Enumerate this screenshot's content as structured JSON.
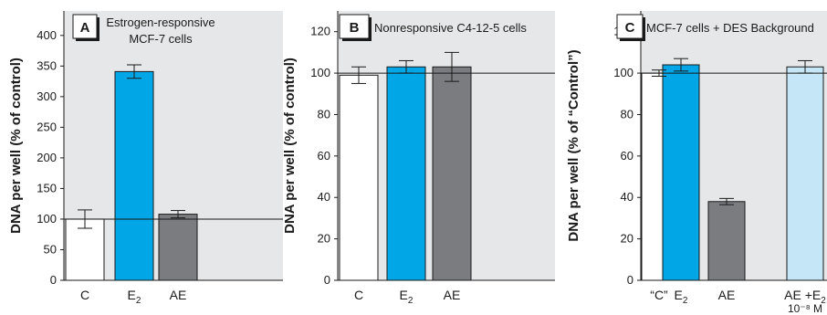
{
  "chart_data": [
    {
      "type": "bar",
      "panel_label": "A",
      "annotation": [
        "Estrogen-responsive",
        "MCF-7 cells"
      ],
      "ylabel": "DNA per well (% of control)",
      "categories": [
        {
          "main": "C",
          "sub": "",
          "extra": ""
        },
        {
          "main": "E",
          "sub": "2",
          "extra": ""
        },
        {
          "main": "AE",
          "sub": "",
          "extra": ""
        }
      ],
      "values": [
        100,
        341,
        108
      ],
      "errors": [
        15,
        11,
        6
      ],
      "ylim": [
        0,
        440
      ],
      "yticks": [
        0,
        50,
        100,
        150,
        200,
        250,
        300,
        350,
        400
      ],
      "reference_line": 100,
      "colors": [
        "#ffffff",
        "#00a6e6",
        "#7a7c80"
      ]
    },
    {
      "type": "bar",
      "panel_label": "B",
      "annotation": [
        "Nonresponsive C4-12-5 cells"
      ],
      "ylabel": "DNA per well (% of control)",
      "categories": [
        {
          "main": "C",
          "sub": "",
          "extra": ""
        },
        {
          "main": "E",
          "sub": "2",
          "extra": ""
        },
        {
          "main": "AE",
          "sub": "",
          "extra": ""
        }
      ],
      "values": [
        99,
        103,
        103
      ],
      "errors": [
        4,
        3,
        7
      ],
      "ylim": [
        0,
        130
      ],
      "yticks": [
        0,
        20,
        40,
        60,
        80,
        100,
        120
      ],
      "reference_line": 100,
      "colors": [
        "#ffffff",
        "#00a6e6",
        "#7a7c80"
      ]
    },
    {
      "type": "bar",
      "panel_label": "C",
      "annotation": [
        "MCF-7 cells + DES Background"
      ],
      "ylabel": "DNA per well (% of “Control”)",
      "categories": [
        {
          "main": "“C”",
          "sub": "",
          "extra": ""
        },
        {
          "main": "E",
          "sub": "2",
          "extra": ""
        },
        {
          "main": "AE",
          "sub": "",
          "extra": ""
        },
        {
          "main": "AE +E",
          "sub": "2",
          "extra": "10⁻⁸ M"
        }
      ],
      "values": [
        100,
        104,
        38,
        103
      ],
      "errors": [
        1.5,
        3,
        1.5,
        3
      ],
      "ylim": [
        0,
        130
      ],
      "yticks": [
        0,
        20,
        40,
        60,
        80,
        100,
        120
      ],
      "reference_line": 100,
      "colors": [
        "#ffffff",
        "#00a6e6",
        "#7a7c80",
        "#c5e6f7"
      ]
    }
  ]
}
